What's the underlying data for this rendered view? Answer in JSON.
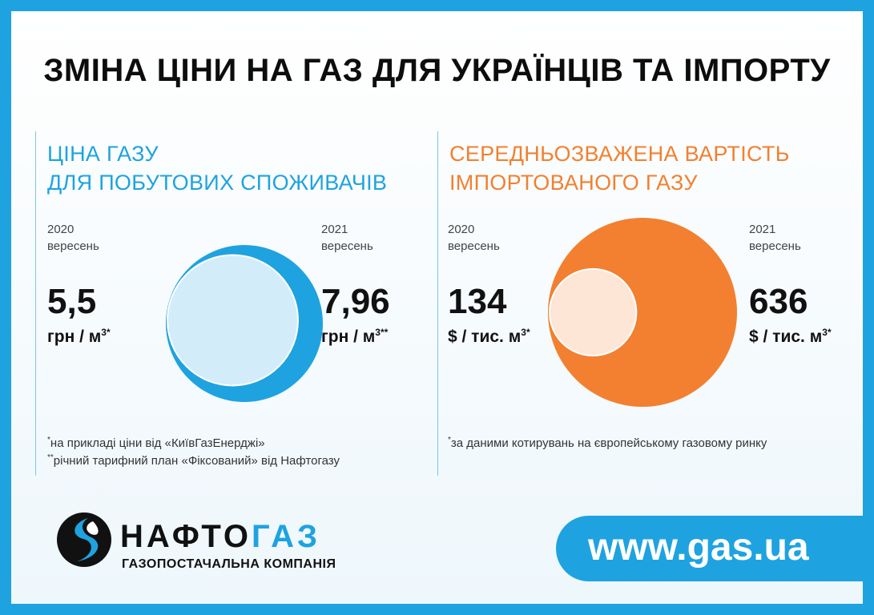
{
  "title": "ЗМІНА ЦІНИ НА ГАЗ ДЛЯ УКРАЇНЦІВ ТА ІМПОРТУ",
  "colors": {
    "frame": "#1ea3e0",
    "household_dark": "#1ea3e0",
    "household_light": "#d3ecf9",
    "import_dark": "#f28030",
    "import_light": "#fde6d6"
  },
  "chart_data": [
    {
      "type": "bubble",
      "title": "ЦІНА ГАЗУ ДЛЯ ПОБУТОВИХ СПОЖИВАЧІВ",
      "title_lines": [
        "ЦІНА ГАЗУ",
        "ДЛЯ ПОБУТОВИХ СПОЖИВАЧІВ"
      ],
      "unit": "грн / м³",
      "points": [
        {
          "year": "2020",
          "month": "вересень",
          "value": 5.5,
          "label": "5,5",
          "unit_text": "грн / м",
          "mark": "3*"
        },
        {
          "year": "2021",
          "month": "вересень",
          "value": 7.96,
          "label": "7,96",
          "unit_text": "грн / м",
          "mark": "3**"
        }
      ],
      "notes": [
        {
          "mark": "*",
          "text": "на прикладі ціни від «КиївГазЕнерджі»"
        },
        {
          "mark": "**",
          "text": "річний тарифний план «Фіксований» від Нафтогазу"
        }
      ]
    },
    {
      "type": "bubble",
      "title": "СЕРЕДНЬОЗВАЖЕНА ВАРТІСТЬ ІМПОРТОВАНОГО ГАЗУ",
      "title_lines": [
        "СЕРЕДНЬОЗВАЖЕНА ВАРТІСТЬ",
        "ІМПОРТОВАНОГО ГАЗУ"
      ],
      "unit": "$ / тис. м³",
      "points": [
        {
          "year": "2020",
          "month": "вересень",
          "value": 134,
          "label": "134",
          "unit_text": "$ / тис. м",
          "mark": "3*"
        },
        {
          "year": "2021",
          "month": "вересень",
          "value": 636,
          "label": "636",
          "unit_text": "$ / тис. м",
          "mark": "3*"
        }
      ],
      "notes": [
        {
          "mark": "*",
          "text": "за даними котирувань на європейському газовому ринку"
        }
      ]
    }
  ],
  "footer": {
    "logo_icon": "naftogaz-flame-logo",
    "brand_left": "НАФТО",
    "brand_right": "ГАЗ",
    "subtitle": "ГАЗОПОСТАЧАЛЬНА КОМПАНІЯ",
    "url": "www.gas.ua"
  }
}
